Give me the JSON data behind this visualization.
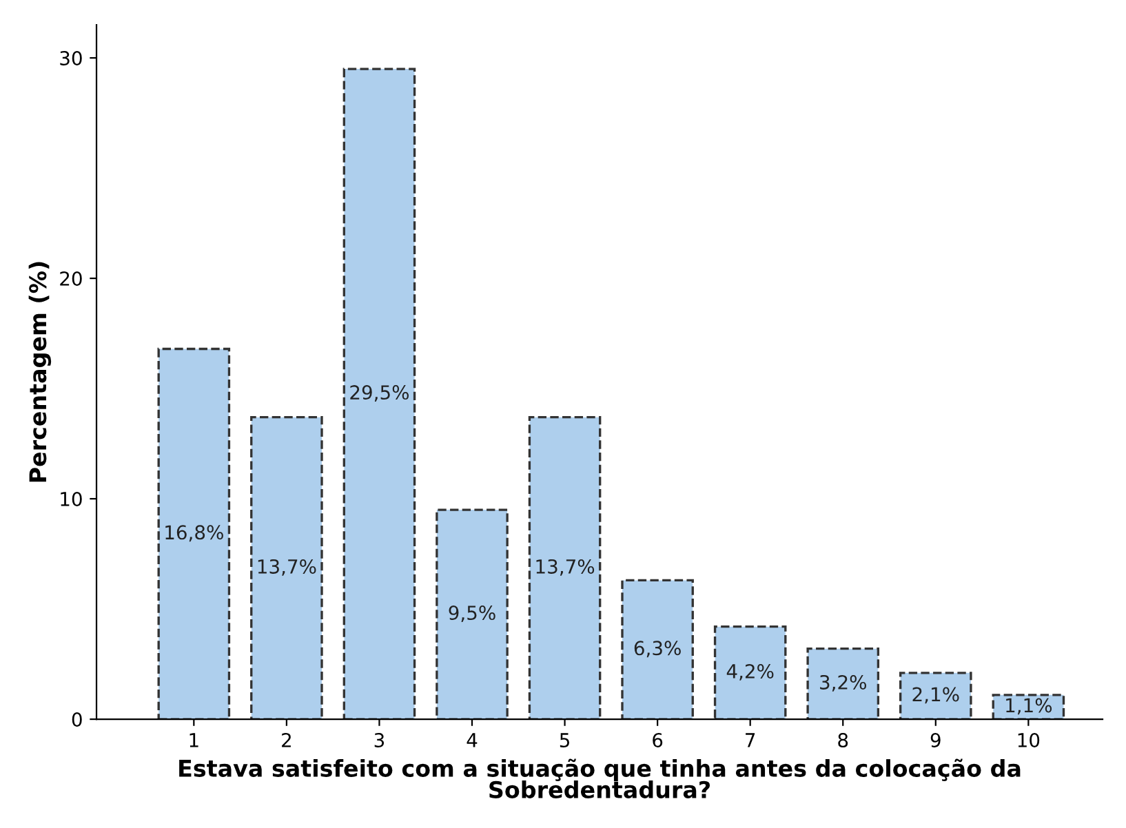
{
  "chart_data": {
    "type": "bar",
    "xlabel": "Estava satisfeito com a situação que tinha antes da colocação da\nSobredentadura?",
    "ylabel": "Percentagem (%)",
    "categories": [
      "1",
      "2",
      "3",
      "4",
      "5",
      "6",
      "7",
      "8",
      "9",
      "10"
    ],
    "values": [
      16.8,
      13.7,
      29.5,
      9.5,
      13.7,
      6.3,
      4.2,
      3.2,
      2.1,
      1.1
    ],
    "value_labels": [
      "16,8%",
      "13,7%",
      "29,5%",
      "9,5%",
      "13,7%",
      "6,3%",
      "4,2%",
      "3,2%",
      "2,1%",
      "1,1%"
    ],
    "color": "#aecfed",
    "line_style": "dashed",
    "ylim": [
      0,
      31.5
    ],
    "yticks": [
      0,
      10,
      20,
      30
    ],
    "grid": false,
    "legend": false
  }
}
